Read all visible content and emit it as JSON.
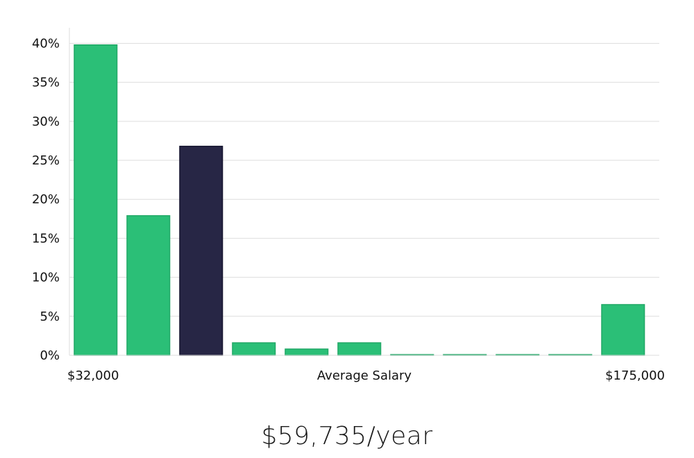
{
  "chart_data": {
    "type": "bar",
    "categories": [
      "1",
      "2",
      "3",
      "4",
      "5",
      "6",
      "7",
      "8",
      "9",
      "10",
      "11"
    ],
    "values": [
      39.8,
      17.9,
      26.8,
      1.6,
      0.8,
      1.6,
      0.0,
      0.0,
      0.0,
      0.0,
      6.5
    ],
    "highlight_index": 2,
    "ylim": [
      0,
      42
    ],
    "yticks": [
      0,
      5,
      10,
      15,
      20,
      25,
      30,
      35,
      40
    ],
    "ytick_suffix": "%",
    "grid": true,
    "xlabel": "Average Salary",
    "x_start_label": "$32,000",
    "x_end_label": "$175,000",
    "bar_color": "#2bbf77",
    "bar_edge_color": "#21a866",
    "highlight_color": "#272645",
    "highlight_edge_color": "#15142e",
    "grid_color": "#dedede"
  },
  "caption": "$59,735/year"
}
